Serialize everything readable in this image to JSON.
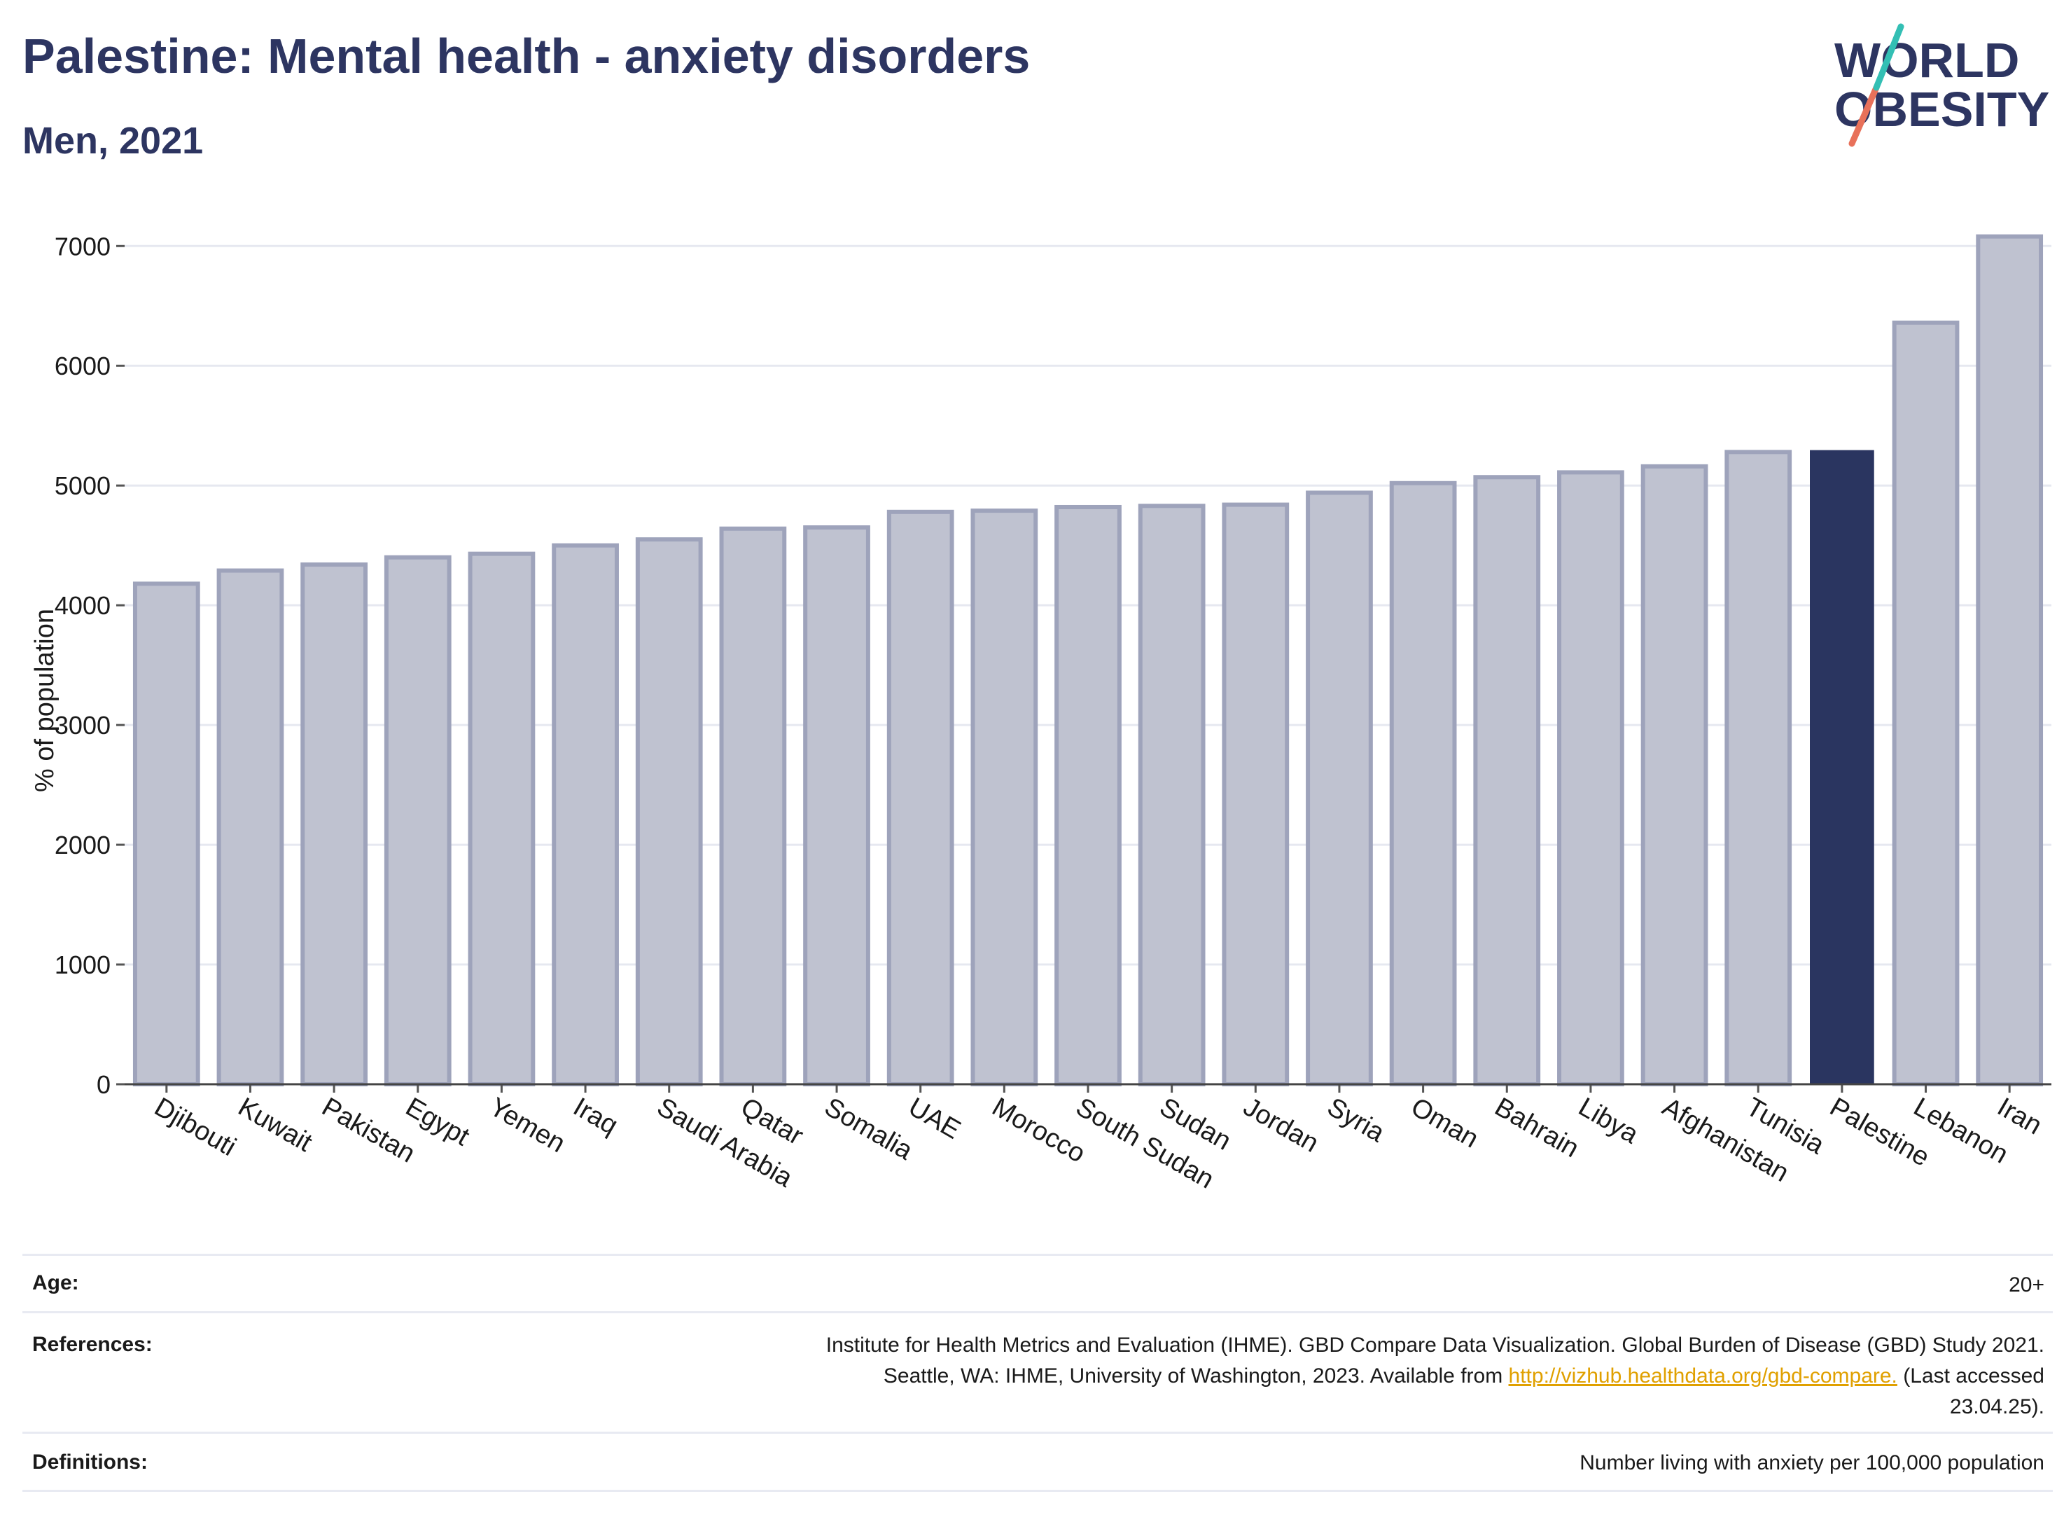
{
  "title": "Palestine: Mental health - anxiety disorders",
  "subtitle": "Men, 2021",
  "logo": {
    "line1": "WORLD",
    "line2": "OBESITY"
  },
  "colors": {
    "highlight": "#2a3560",
    "bar_fill": "#bfc2d0",
    "bar_stroke": "#9ea3bb",
    "title": "#2d3561",
    "link": "#e0a000"
  },
  "chart_data": {
    "type": "bar",
    "ylabel": "% of population",
    "ylim": [
      0,
      7300
    ],
    "yticks": [
      0,
      1000,
      2000,
      3000,
      4000,
      5000,
      6000,
      7000
    ],
    "grid": true,
    "highlight": "Palestine",
    "categories": [
      "Djibouti",
      "Kuwait",
      "Pakistan",
      "Egypt",
      "Yemen",
      "Iraq",
      "Saudi Arabia",
      "Qatar",
      "Somalia",
      "UAE",
      "Morocco",
      "South Sudan",
      "Sudan",
      "Jordan",
      "Syria",
      "Oman",
      "Bahrain",
      "Libya",
      "Afghanistan",
      "Tunisia",
      "Palestine",
      "Lebanon",
      "Iran"
    ],
    "values": [
      4180,
      4290,
      4340,
      4400,
      4430,
      4500,
      4550,
      4640,
      4650,
      4780,
      4790,
      4820,
      4830,
      4840,
      4940,
      5020,
      5070,
      5110,
      5160,
      5280,
      5290,
      6360,
      7080
    ]
  },
  "info": {
    "age_label": "Age:",
    "age_value": "20+",
    "references_label": "References:",
    "references_line1": "Institute for Health Metrics and Evaluation (IHME). GBD Compare Data Visualization. Global Burden of Disease (GBD) Study 2021.",
    "references_line2_pre": "Seattle, WA: IHME, University of Washington, 2023. Available from ",
    "references_link": "http://vizhub.healthdata.org/gbd-compare.",
    "references_line2_post": " (Last accessed",
    "references_line3": "23.04.25).",
    "definitions_label": "Definitions:",
    "definitions_value": "Number living with anxiety per 100,000 population"
  }
}
